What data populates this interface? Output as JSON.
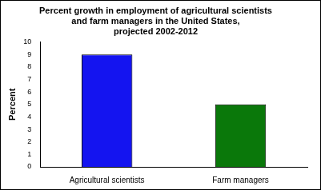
{
  "chart_data": {
    "type": "bar",
    "title": "Percent growth in employment of agricultural scientists\nand farm managers in the United States,\nprojected 2002-2012",
    "y_label": "Percent",
    "categories": [
      "Agricultural scientists",
      "Farm managers"
    ],
    "values": [
      9,
      5
    ],
    "colors": [
      "#1414f0",
      "#0a780a"
    ],
    "ylim": [
      0,
      10
    ],
    "yticks": [
      0,
      1,
      2,
      3,
      4,
      5,
      6,
      7,
      8,
      9,
      10
    ],
    "grid": false
  }
}
